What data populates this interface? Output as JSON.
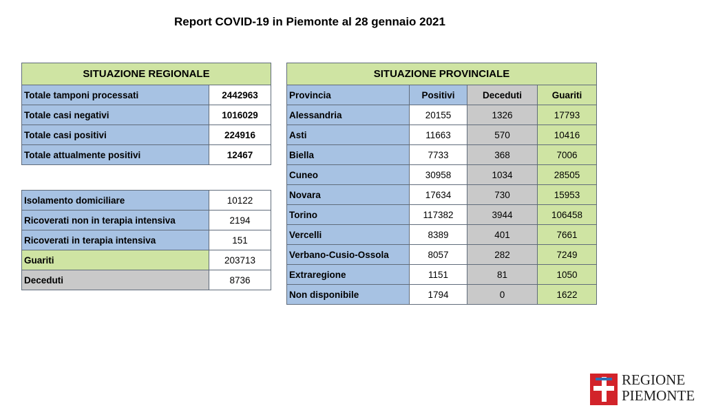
{
  "title": "Report COVID-19 in Piemonte al 28 gennaio 2021",
  "regional": {
    "header": "SITUAZIONE REGIONALE",
    "rows": [
      {
        "label": "Totale tamponi processati",
        "value": "2442963"
      },
      {
        "label": "Totale casi negativi",
        "value": "1016029"
      },
      {
        "label": "Totale casi positivi",
        "value": "224916"
      },
      {
        "label": "Totale attualmente positivi",
        "value": "12467"
      }
    ],
    "detail": [
      {
        "label": "Isolamento domiciliare",
        "value": "10122"
      },
      {
        "label": "Ricoverati non in terapia intensiva",
        "value": "2194"
      },
      {
        "label": "Ricoverati in terapia intensiva",
        "value": "151"
      },
      {
        "label": "Guariti",
        "value": "203713"
      },
      {
        "label": "Deceduti",
        "value": "8736"
      }
    ]
  },
  "provincial": {
    "header": "SITUAZIONE PROVINCIALE",
    "columns": [
      "Provincia",
      "Positivi",
      "Deceduti",
      "Guariti"
    ],
    "rows": [
      [
        "Alessandria",
        "20155",
        "1326",
        "17793"
      ],
      [
        "Asti",
        "11663",
        "570",
        "10416"
      ],
      [
        "Biella",
        "7733",
        "368",
        "7006"
      ],
      [
        "Cuneo",
        "30958",
        "1034",
        "28505"
      ],
      [
        "Novara",
        "17634",
        "730",
        "15953"
      ],
      [
        "Torino",
        "117382",
        "3944",
        "106458"
      ],
      [
        "Vercelli",
        "8389",
        "401",
        "7661"
      ],
      [
        "Verbano-Cusio-Ossola",
        "8057",
        "282",
        "7249"
      ],
      [
        "Extraregione",
        "1151",
        "81",
        "1050"
      ],
      [
        "Non disponibile",
        "1794",
        "0",
        "1622"
      ]
    ]
  },
  "logo": {
    "line1": "REGIONE",
    "line2": "PIEMONTE"
  },
  "colors": {
    "blue": "#a7c2e3",
    "green": "#cfe4a3",
    "gray": "#c9c9c9",
    "logo_red": "#d2232a"
  }
}
